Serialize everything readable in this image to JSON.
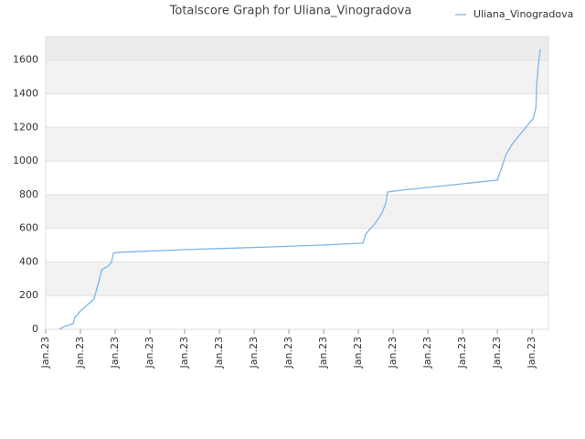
{
  "chart_data": {
    "type": "line",
    "title": "Totalscore Graph for Uliana_Vinogradova",
    "series": [
      {
        "name": "Uliana_Vinogradova",
        "color": "#7cb5ec",
        "x": [
          0.39,
          0.53,
          0.79,
          0.84,
          1.0,
          1.21,
          1.39,
          1.53,
          1.61,
          1.79,
          1.89,
          1.95,
          2.05,
          3.95,
          6.58,
          8.03,
          9.13,
          9.21,
          9.47,
          9.68,
          9.79,
          9.84,
          10.26,
          13.0,
          13.11,
          13.24,
          13.42,
          13.68,
          13.89,
          14.03,
          14.11,
          14.13,
          14.18,
          14.24
        ],
        "values": [
          0,
          16,
          33,
          71,
          109,
          147,
          180,
          283,
          354,
          375,
          397,
          452,
          457,
          473,
          490,
          501,
          512,
          566,
          626,
          691,
          751,
          816,
          827,
          887,
          952,
          1034,
          1099,
          1165,
          1219,
          1252,
          1317,
          1442,
          1578,
          1665
        ]
      }
    ],
    "xlim": [
      0,
      14.47
    ],
    "xticks": [
      {
        "value": 0,
        "label": "Jan.23"
      },
      {
        "value": 1,
        "label": "Jan.23"
      },
      {
        "value": 2,
        "label": "Jan.23"
      },
      {
        "value": 3,
        "label": "Jan.23"
      },
      {
        "value": 4,
        "label": "Jan.23"
      },
      {
        "value": 5,
        "label": "Jan.23"
      },
      {
        "value": 6,
        "label": "Jan.23"
      },
      {
        "value": 7,
        "label": "Jan.23"
      },
      {
        "value": 8,
        "label": "Jan.23"
      },
      {
        "value": 9,
        "label": "Jan.23"
      },
      {
        "value": 10,
        "label": "Jan.23"
      },
      {
        "value": 11,
        "label": "Jan.23"
      },
      {
        "value": 12,
        "label": "Jan.23"
      },
      {
        "value": 13,
        "label": "Jan.23"
      },
      {
        "value": 14,
        "label": "Jan.23"
      }
    ],
    "ylim": [
      0,
      1740
    ],
    "yticks": [
      0,
      200,
      400,
      600,
      800,
      1000,
      1200,
      1400,
      1600
    ],
    "grid": true,
    "legend": "top-right"
  }
}
